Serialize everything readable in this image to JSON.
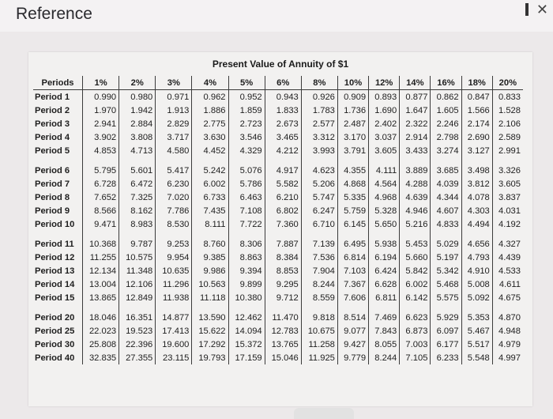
{
  "window": {
    "title": "Reference"
  },
  "table": {
    "title": "Present Value of Annuity of $1",
    "headers": [
      "Periods",
      "1%",
      "2%",
      "3%",
      "4%",
      "5%",
      "6%",
      "8%",
      "10%",
      "12%",
      "14%",
      "16%",
      "18%",
      "20%"
    ],
    "groups": [
      [
        {
          "label": "Period 1",
          "values": [
            "0.990",
            "0.980",
            "0.971",
            "0.962",
            "0.952",
            "0.943",
            "0.926",
            "0.909",
            "0.893",
            "0.877",
            "0.862",
            "0.847",
            "0.833"
          ]
        },
        {
          "label": "Period 2",
          "values": [
            "1.970",
            "1.942",
            "1.913",
            "1.886",
            "1.859",
            "1.833",
            "1.783",
            "1.736",
            "1.690",
            "1.647",
            "1.605",
            "1.566",
            "1.528"
          ]
        },
        {
          "label": "Period 3",
          "values": [
            "2.941",
            "2.884",
            "2.829",
            "2.775",
            "2.723",
            "2.673",
            "2.577",
            "2.487",
            "2.402",
            "2.322",
            "2.246",
            "2.174",
            "2.106"
          ]
        },
        {
          "label": "Period 4",
          "values": [
            "3.902",
            "3.808",
            "3.717",
            "3.630",
            "3.546",
            "3.465",
            "3.312",
            "3.170",
            "3.037",
            "2.914",
            "2.798",
            "2.690",
            "2.589"
          ]
        },
        {
          "label": "Period 5",
          "values": [
            "4.853",
            "4.713",
            "4.580",
            "4.452",
            "4.329",
            "4.212",
            "3.993",
            "3.791",
            "3.605",
            "3.433",
            "3.274",
            "3.127",
            "2.991"
          ]
        }
      ],
      [
        {
          "label": "Period 6",
          "values": [
            "5.795",
            "5.601",
            "5.417",
            "5.242",
            "5.076",
            "4.917",
            "4.623",
            "4.355",
            "4.111",
            "3.889",
            "3.685",
            "3.498",
            "3.326"
          ]
        },
        {
          "label": "Period 7",
          "values": [
            "6.728",
            "6.472",
            "6.230",
            "6.002",
            "5.786",
            "5.582",
            "5.206",
            "4.868",
            "4.564",
            "4.288",
            "4.039",
            "3.812",
            "3.605"
          ]
        },
        {
          "label": "Period 8",
          "values": [
            "7.652",
            "7.325",
            "7.020",
            "6.733",
            "6.463",
            "6.210",
            "5.747",
            "5.335",
            "4.968",
            "4.639",
            "4.344",
            "4.078",
            "3.837"
          ]
        },
        {
          "label": "Period 9",
          "values": [
            "8.566",
            "8.162",
            "7.786",
            "7.435",
            "7.108",
            "6.802",
            "6.247",
            "5.759",
            "5.328",
            "4.946",
            "4.607",
            "4.303",
            "4.031"
          ]
        },
        {
          "label": "Period 10",
          "values": [
            "9.471",
            "8.983",
            "8.530",
            "8.111",
            "7.722",
            "7.360",
            "6.710",
            "6.145",
            "5.650",
            "5.216",
            "4.833",
            "4.494",
            "4.192"
          ]
        }
      ],
      [
        {
          "label": "Period 11",
          "values": [
            "10.368",
            "9.787",
            "9.253",
            "8.760",
            "8.306",
            "7.887",
            "7.139",
            "6.495",
            "5.938",
            "5.453",
            "5.029",
            "4.656",
            "4.327"
          ]
        },
        {
          "label": "Period 12",
          "values": [
            "11.255",
            "10.575",
            "9.954",
            "9.385",
            "8.863",
            "8.384",
            "7.536",
            "6.814",
            "6.194",
            "5.660",
            "5.197",
            "4.793",
            "4.439"
          ]
        },
        {
          "label": "Period 13",
          "values": [
            "12.134",
            "11.348",
            "10.635",
            "9.986",
            "9.394",
            "8.853",
            "7.904",
            "7.103",
            "6.424",
            "5.842",
            "5.342",
            "4.910",
            "4.533"
          ]
        },
        {
          "label": "Period 14",
          "values": [
            "13.004",
            "12.106",
            "11.296",
            "10.563",
            "9.899",
            "9.295",
            "8.244",
            "7.367",
            "6.628",
            "6.002",
            "5.468",
            "5.008",
            "4.611"
          ]
        },
        {
          "label": "Period 15",
          "values": [
            "13.865",
            "12.849",
            "11.938",
            "11.118",
            "10.380",
            "9.712",
            "8.559",
            "7.606",
            "6.811",
            "6.142",
            "5.575",
            "5.092",
            "4.675"
          ]
        }
      ],
      [
        {
          "label": "Period 20",
          "values": [
            "18.046",
            "16.351",
            "14.877",
            "13.590",
            "12.462",
            "11.470",
            "9.818",
            "8.514",
            "7.469",
            "6.623",
            "5.929",
            "5.353",
            "4.870"
          ]
        },
        {
          "label": "Period 25",
          "values": [
            "22.023",
            "19.523",
            "17.413",
            "15.622",
            "14.094",
            "12.783",
            "10.675",
            "9.077",
            "7.843",
            "6.873",
            "6.097",
            "5.467",
            "4.948"
          ]
        },
        {
          "label": "Period 30",
          "values": [
            "25.808",
            "22.396",
            "19.600",
            "17.292",
            "15.372",
            "13.765",
            "11.258",
            "9.427",
            "8.055",
            "7.003",
            "6.177",
            "5.517",
            "4.979"
          ]
        },
        {
          "label": "Period 40",
          "values": [
            "32.835",
            "27.355",
            "23.115",
            "19.793",
            "17.159",
            "15.046",
            "11.925",
            "9.779",
            "8.244",
            "7.105",
            "6.233",
            "5.548",
            "4.997"
          ]
        }
      ]
    ]
  }
}
